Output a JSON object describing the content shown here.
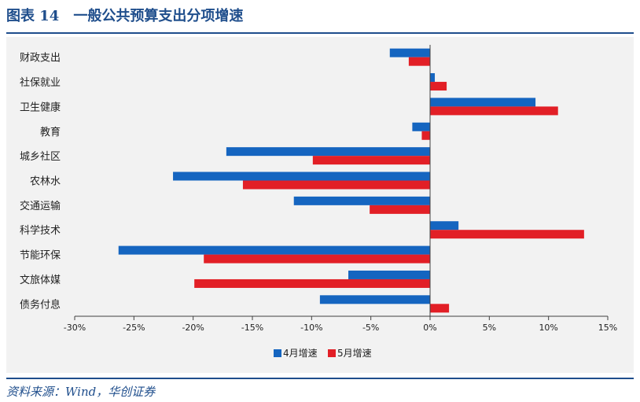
{
  "header": {
    "figure_number": "图表 14",
    "title": "一般公共预算支出分项增速"
  },
  "source": "资料来源：Wind，华创证券",
  "colors": {
    "series1": "#1565c0",
    "series2": "#e21f26",
    "accent": "#1f4e8c"
  },
  "chart_data": {
    "type": "bar",
    "orientation": "horizontal",
    "categories": [
      "财政支出",
      "社保就业",
      "卫生健康",
      "教育",
      "城乡社区",
      "农林水",
      "交通运输",
      "科学技术",
      "节能环保",
      "文旅体媒",
      "债务付息"
    ],
    "series": [
      {
        "name": "4月增速",
        "values": [
          -3.4,
          0.4,
          8.9,
          -1.5,
          -17.2,
          -21.7,
          -11.5,
          2.4,
          -26.3,
          -6.9,
          -9.3
        ]
      },
      {
        "name": "5月增速",
        "values": [
          -1.8,
          1.4,
          10.8,
          -0.7,
          -9.9,
          -15.8,
          -5.1,
          13.0,
          -19.1,
          -19.9,
          1.6
        ]
      }
    ],
    "xlim": [
      -30,
      15
    ],
    "xticks": [
      -30,
      -25,
      -20,
      -15,
      -10,
      -5,
      0,
      5,
      10,
      15
    ],
    "xtick_labels": [
      "-30%",
      "-25%",
      "-20%",
      "-15%",
      "-10%",
      "-5%",
      "0%",
      "5%",
      "10%",
      "15%"
    ],
    "xlabel": "",
    "ylabel": "",
    "legend_position": "bottom-center",
    "grid": false
  }
}
